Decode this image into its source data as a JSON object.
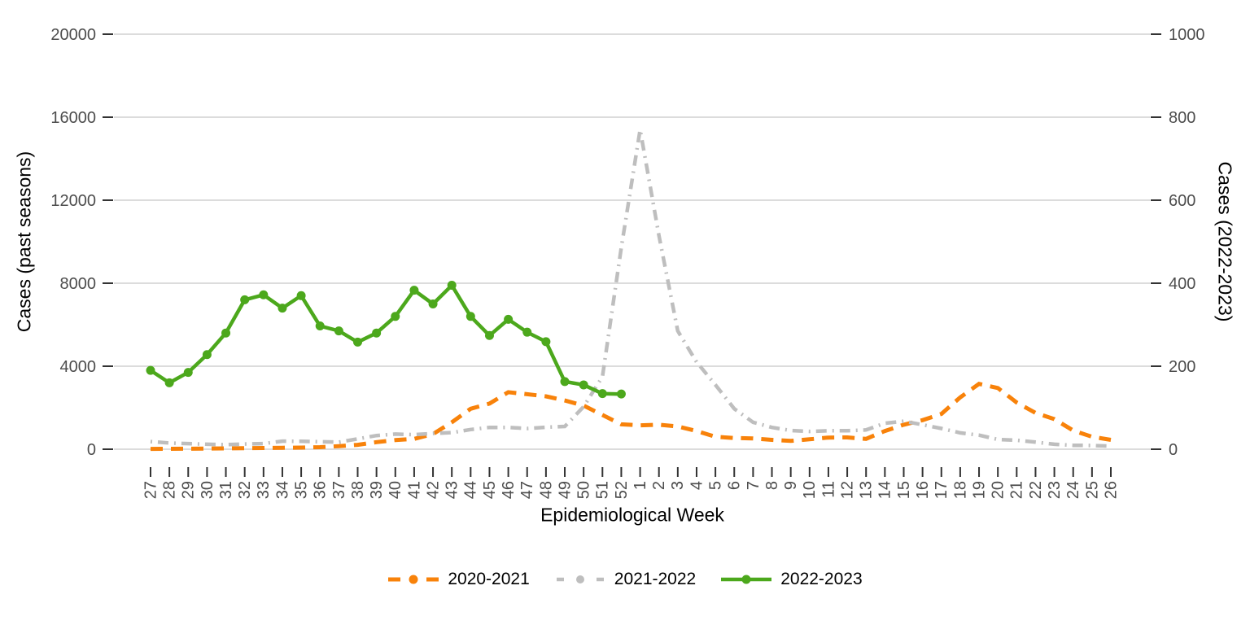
{
  "chart_data": {
    "type": "line",
    "title": "",
    "x_label": "Epidemiological Week",
    "y_left": {
      "label": "Cases (past seasons)",
      "ticks": [
        0,
        4000,
        8000,
        12000,
        16000,
        20000
      ],
      "range": [
        0,
        20000
      ]
    },
    "y_right": {
      "label": "Cases (2022-2023)",
      "ticks": [
        0,
        200,
        400,
        600,
        800,
        1000
      ],
      "range": [
        0,
        1000
      ]
    },
    "grid": "horizontal-only",
    "legend_position": "bottom",
    "categories": [
      "27",
      "28",
      "29",
      "30",
      "31",
      "32",
      "33",
      "34",
      "35",
      "36",
      "37",
      "38",
      "39",
      "40",
      "41",
      "42",
      "43",
      "44",
      "45",
      "46",
      "47",
      "48",
      "49",
      "50",
      "51",
      "52",
      "1",
      "2",
      "3",
      "4",
      "5",
      "6",
      "7",
      "8",
      "9",
      "10",
      "11",
      "12",
      "13",
      "14",
      "15",
      "16",
      "17",
      "18",
      "19",
      "20",
      "21",
      "22",
      "23",
      "24",
      "25",
      "26"
    ],
    "series": [
      {
        "name": "2020-2021",
        "color": "#F8820A",
        "line_style": "dashed",
        "axis": "left",
        "marker": false,
        "values": [
          15,
          20,
          25,
          30,
          40,
          50,
          60,
          70,
          80,
          100,
          150,
          210,
          340,
          440,
          500,
          730,
          1300,
          1950,
          2200,
          2750,
          2650,
          2550,
          2350,
          2100,
          1650,
          1200,
          1150,
          1180,
          1100,
          880,
          600,
          540,
          520,
          450,
          400,
          480,
          560,
          570,
          500,
          880,
          1180,
          1400,
          1700,
          2500,
          3150,
          2950,
          2250,
          1750,
          1450,
          900,
          600,
          450
        ]
      },
      {
        "name": "2021-2022",
        "color": "#BEBEBE",
        "line_style": "dashdot",
        "axis": "left",
        "marker": false,
        "values": [
          370,
          300,
          270,
          240,
          220,
          250,
          270,
          390,
          380,
          360,
          340,
          500,
          660,
          730,
          700,
          760,
          800,
          950,
          1050,
          1050,
          1000,
          1060,
          1100,
          2050,
          3500,
          9700,
          15400,
          10300,
          5700,
          4200,
          3100,
          1950,
          1300,
          1050,
          900,
          860,
          890,
          890,
          930,
          1250,
          1350,
          1180,
          1000,
          790,
          680,
          470,
          430,
          340,
          240,
          190,
          180,
          150
        ]
      },
      {
        "name": "2022-2023",
        "color": "#4CA81C",
        "line_style": "solid",
        "axis": "right",
        "marker": true,
        "values": [
          190,
          160,
          185,
          228,
          280,
          360,
          372,
          340,
          370,
          297,
          285,
          258,
          280,
          320,
          383,
          350,
          395,
          320,
          274,
          313,
          282,
          259,
          163,
          155,
          134,
          133,
          null,
          null,
          null,
          null,
          null,
          null,
          null,
          null,
          null,
          null,
          null,
          null,
          null,
          null,
          null,
          null,
          null,
          null,
          null,
          null,
          null,
          null,
          null,
          null,
          null,
          null
        ]
      }
    ],
    "colors": {
      "grid": "#DCDCDC",
      "tick_text": "#4D4D4D",
      "tick_mark": "#333333"
    }
  }
}
